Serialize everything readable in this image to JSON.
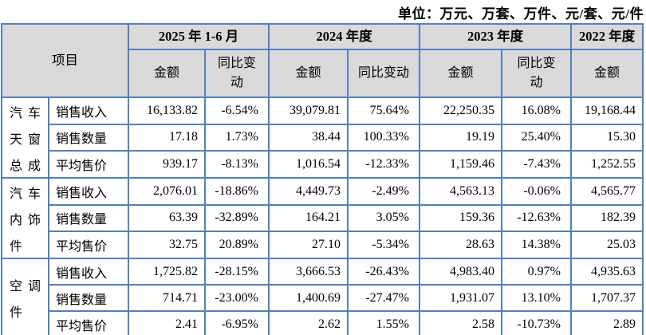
{
  "unit_note": "单位：万元、万套、万件、元/套、元/件",
  "colors": {
    "border": "#4f81bd",
    "header_bg": "#d9d9d9",
    "text": "#000000"
  },
  "table": {
    "corner_header": "项目",
    "period_groups": [
      {
        "label": "2025 年 1-6 月",
        "sub": [
          "金额",
          "同比变动"
        ]
      },
      {
        "label": "2024 年度",
        "sub": [
          "金额",
          "同比变动"
        ]
      },
      {
        "label": "2023 年度",
        "sub": [
          "金额",
          "同比变动"
        ]
      },
      {
        "label": "2022 年度",
        "sub": [
          "金额"
        ]
      }
    ],
    "categories": [
      {
        "name": "汽车天窗总成",
        "name_lines": [
          "汽车",
          "天窗",
          "总成"
        ],
        "rows": [
          {
            "metric": "销售收入",
            "values": [
              "16,133.82",
              "-6.54%",
              "39,079.81",
              "75.64%",
              "22,250.35",
              "16.08%",
              "19,168.44"
            ]
          },
          {
            "metric": "销售数量",
            "values": [
              "17.18",
              "1.73%",
              "38.44",
              "100.33%",
              "19.19",
              "25.40%",
              "15.30"
            ]
          },
          {
            "metric": "平均售价",
            "values": [
              "939.17",
              "-8.13%",
              "1,016.54",
              "-12.33%",
              "1,159.46",
              "-7.43%",
              "1,252.55"
            ]
          }
        ]
      },
      {
        "name": "汽车内饰件",
        "name_lines": [
          "汽车",
          "内饰",
          "件"
        ],
        "rows": [
          {
            "metric": "销售收入",
            "values": [
              "2,076.01",
              "-18.86%",
              "4,449.73",
              "-2.49%",
              "4,563.13",
              "-0.06%",
              "4,565.77"
            ]
          },
          {
            "metric": "销售数量",
            "values": [
              "63.39",
              "-32.89%",
              "164.21",
              "3.05%",
              "159.36",
              "-12.63%",
              "182.39"
            ]
          },
          {
            "metric": "平均售价",
            "values": [
              "32.75",
              "20.89%",
              "27.10",
              "-5.34%",
              "28.63",
              "14.38%",
              "25.03"
            ]
          }
        ]
      },
      {
        "name": "空调件",
        "name_lines": [
          "空调",
          "件"
        ],
        "rows": [
          {
            "metric": "销售收入",
            "values": [
              "1,725.82",
              "-28.15%",
              "3,666.53",
              "-26.43%",
              "4,983.40",
              "0.97%",
              "4,935.63"
            ]
          },
          {
            "metric": "销售数量",
            "values": [
              "714.71",
              "-23.00%",
              "1,400.69",
              "-27.47%",
              "1,931.07",
              "13.10%",
              "1,707.37"
            ]
          },
          {
            "metric": "平均售价",
            "values": [
              "2.41",
              "-6.95%",
              "2.62",
              "1.55%",
              "2.58",
              "-10.73%",
              "2.89"
            ]
          }
        ]
      }
    ]
  }
}
